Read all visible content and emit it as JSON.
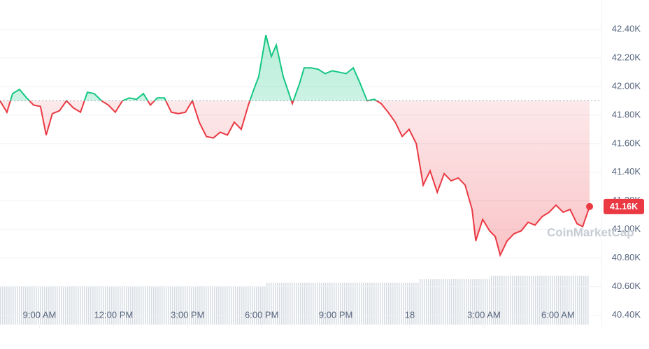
{
  "chart_data": {
    "type": "line",
    "x": [
      7.4,
      7.68,
      7.91,
      8.19,
      8.48,
      8.76,
      9.04,
      9.27,
      9.52,
      9.81,
      10.09,
      10.37,
      10.66,
      10.94,
      11.22,
      11.51,
      11.79,
      12.07,
      12.36,
      12.64,
      12.92,
      13.21,
      13.49,
      13.77,
      14.06,
      14.34,
      14.62,
      14.91,
      15.19,
      15.47,
      15.76,
      16.04,
      16.32,
      16.61,
      16.89,
      17.17,
      17.46,
      17.66,
      17.88,
      18.17,
      18.39,
      18.59,
      18.87,
      19.24,
      19.53,
      19.72,
      20.01,
      20.29,
      20.57,
      20.86,
      21.14,
      21.42,
      21.71,
      21.99,
      22.27,
      22.56,
      22.84,
      23.12,
      23.41,
      23.69,
      23.97,
      24.26,
      24.54,
      24.82,
      25.11,
      25.39,
      25.67,
      25.96,
      26.24,
      26.52,
      26.67,
      26.95,
      27.23,
      27.46,
      27.66,
      27.94,
      28.22,
      28.51,
      28.79,
      29.07,
      29.36,
      29.64,
      29.92,
      30.21,
      30.49,
      30.77,
      31.0,
      31.28
    ],
    "values": [
      41900,
      41820,
      41950,
      41980,
      41920,
      41870,
      41860,
      41660,
      41810,
      41830,
      41900,
      41850,
      41820,
      41960,
      41950,
      41900,
      41870,
      41820,
      41900,
      41920,
      41910,
      41950,
      41870,
      41920,
      41920,
      41820,
      41810,
      41820,
      41900,
      41750,
      41650,
      41640,
      41680,
      41660,
      41750,
      41700,
      41870,
      41970,
      42070,
      42360,
      42210,
      42290,
      42070,
      41880,
      42020,
      42130,
      42130,
      42120,
      42090,
      42110,
      42100,
      42090,
      42130,
      42020,
      41900,
      41910,
      41880,
      41820,
      41750,
      41650,
      41700,
      41600,
      41310,
      41410,
      41260,
      41390,
      41340,
      41360,
      41310,
      41140,
      40920,
      41070,
      40990,
      40950,
      40820,
      40920,
      40970,
      40990,
      41050,
      41030,
      41090,
      41120,
      41170,
      41120,
      41140,
      41040,
      41020,
      41160
    ],
    "baseline": 41900,
    "up_color": "#16c784",
    "down_color": "#ea3943",
    "xlim": [
      7.4,
      31.76
    ],
    "xticks": [
      {
        "value": 9,
        "label": "9:00 AM"
      },
      {
        "value": 12,
        "label": "12:00 PM"
      },
      {
        "value": 15,
        "label": "3:00 PM"
      },
      {
        "value": 18,
        "label": "6:00 PM"
      },
      {
        "value": 21,
        "label": "9:00 PM"
      },
      {
        "value": 24,
        "label": "18"
      },
      {
        "value": 27,
        "label": "3:00 AM"
      },
      {
        "value": 30,
        "label": "6:00 AM"
      }
    ],
    "ylim": [
      40310,
      42605
    ],
    "yticks": [
      {
        "value": 40400,
        "label": "40.40K"
      },
      {
        "value": 40600,
        "label": "40.60K"
      },
      {
        "value": 40800,
        "label": "40.80K"
      },
      {
        "value": 41000,
        "label": "41.00K"
      },
      {
        "value": 41200,
        "label": "41.20K"
      },
      {
        "value": 41400,
        "label": "41.40K"
      },
      {
        "value": 41600,
        "label": "41.60K"
      },
      {
        "value": 41800,
        "label": "41.80K"
      },
      {
        "value": 42000,
        "label": "42.00K"
      },
      {
        "value": 42200,
        "label": "42.20K"
      },
      {
        "value": 42400,
        "label": "42.40K"
      }
    ],
    "grid": true,
    "last_label": {
      "value": 41160,
      "label": "41.16K"
    },
    "watermark": "CoinMarketCap"
  }
}
